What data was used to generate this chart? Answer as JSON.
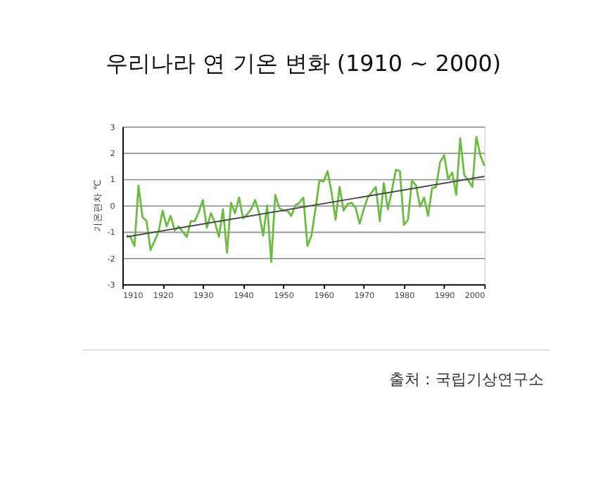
{
  "chart_data": {
    "type": "line",
    "title": "우리나라 연 기온 변화 (1910 ~ 2000)",
    "ylabel": "기온편차 ℃",
    "x": [
      1911,
      1912,
      1913,
      1914,
      1915,
      1916,
      1917,
      1918,
      1919,
      1920,
      1921,
      1922,
      1923,
      1924,
      1925,
      1926,
      1927,
      1928,
      1929,
      1930,
      1931,
      1932,
      1933,
      1934,
      1935,
      1936,
      1937,
      1938,
      1939,
      1940,
      1941,
      1942,
      1943,
      1944,
      1945,
      1946,
      1947,
      1948,
      1949,
      1950,
      1951,
      1952,
      1953,
      1954,
      1955,
      1956,
      1957,
      1958,
      1959,
      1960,
      1961,
      1962,
      1963,
      1964,
      1965,
      1966,
      1967,
      1968,
      1969,
      1970,
      1971,
      1972,
      1973,
      1974,
      1975,
      1976,
      1977,
      1978,
      1979,
      1980,
      1981,
      1982,
      1983,
      1984,
      1985,
      1986,
      1987,
      1988,
      1989,
      1990,
      1991,
      1992,
      1993,
      1994,
      1995,
      1996,
      1997,
      1998,
      1999,
      2000
    ],
    "series": [
      {
        "color": "#6dbb45",
        "values": [
          -1.15,
          -1.2,
          -1.55,
          0.75,
          -0.45,
          -0.6,
          -1.7,
          -1.35,
          -1.0,
          -0.2,
          -0.8,
          -0.4,
          -0.95,
          -0.8,
          -1.0,
          -1.2,
          -0.6,
          -0.6,
          -0.25,
          0.2,
          -0.85,
          -0.3,
          -0.65,
          -1.2,
          -0.15,
          -1.8,
          0.1,
          -0.3,
          0.3,
          -0.5,
          -0.35,
          -0.15,
          0.2,
          -0.3,
          -1.15,
          0.0,
          -2.15,
          0.4,
          -0.1,
          -0.2,
          -0.2,
          -0.4,
          0.0,
          0.1,
          0.3,
          -1.55,
          -1.15,
          -0.15,
          0.95,
          0.9,
          1.3,
          0.5,
          -0.55,
          0.7,
          -0.2,
          0.05,
          0.1,
          -0.1,
          -0.7,
          -0.15,
          0.3,
          0.5,
          0.7,
          -0.6,
          0.85,
          -0.15,
          0.55,
          1.35,
          1.3,
          -0.75,
          -0.55,
          0.95,
          0.75,
          -0.05,
          0.3,
          -0.4,
          0.65,
          0.7,
          1.65,
          1.9,
          1.0,
          1.25,
          0.4,
          2.55,
          1.15,
          0.95,
          0.7,
          2.6,
          1.9,
          1.5
        ]
      },
      {
        "type": "line",
        "color": "#444444",
        "x": [
          1911,
          2000
        ],
        "values": [
          -1.2,
          1.1
        ]
      }
    ],
    "xlim": [
      1910,
      2000
    ],
    "xticks": [
      1910,
      1920,
      1930,
      1940,
      1950,
      1960,
      1970,
      1980,
      1990,
      2000
    ],
    "ylim": [
      -3,
      3
    ],
    "yticks": [
      -3,
      -2,
      -1,
      0,
      1,
      2,
      3
    ],
    "grid": "y",
    "annotations": [
      "출처 : 국립기상연구소"
    ]
  }
}
